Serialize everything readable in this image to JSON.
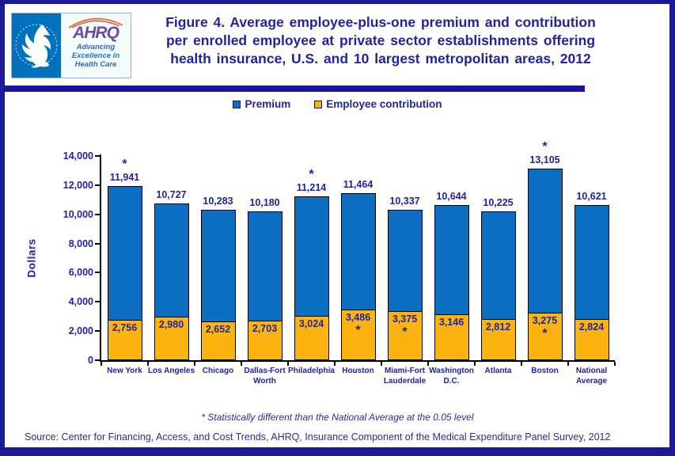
{
  "header": {
    "logo": {
      "hhs_seal": "hhs-eagle-seal",
      "ahrq_acronym": "AHRQ",
      "tagline_lines": [
        "Advancing",
        "Excellence in",
        "Health Care"
      ]
    },
    "title_lines": [
      "Figure 4. Average employee-plus-one premium and contribution",
      "per enrolled employee at private sector establishments offering",
      "health insurance, U.S. and 10 largest metropolitan areas, 2012"
    ]
  },
  "legend": [
    {
      "label": "Premium",
      "color": "#0b6ec0"
    },
    {
      "label": "Employee contribution",
      "color": "#fbb40f"
    }
  ],
  "chart_data": {
    "type": "bar",
    "title": "Figure 4. Average employee-plus-one premium and contribution per enrolled employee at private sector establishments offering health insurance, U.S. and 10 largest metropolitan areas, 2012",
    "xlabel": "",
    "ylabel": "Dollars",
    "ylim": [
      0,
      14000
    ],
    "ytick_step": 2000,
    "grid": false,
    "legend_position": "top-center",
    "categories": [
      "New York",
      "Los Angeles",
      "Chicago",
      "Dallas-Fort Worth",
      "Philadelphia",
      "Houston",
      "Miami-Fort Lauderdale",
      "Washington D.C.",
      "Atlanta",
      "Boston",
      "National Average"
    ],
    "category_label_lines": [
      "New York",
      "Los Angeles",
      "Chicago",
      "Dallas-Fort\nWorth",
      "Philadelphia",
      "Houston",
      "Miami-Fort\nLauderdale",
      "Washington\nD.C.",
      "Atlanta",
      "Boston",
      "National\nAverage"
    ],
    "series": [
      {
        "name": "Premium",
        "color": "#0b6ec0",
        "values": [
          11941,
          10727,
          10283,
          10180,
          11214,
          11464,
          10337,
          10644,
          10225,
          13105,
          10621
        ],
        "statistically_different_flags": [
          true,
          false,
          false,
          false,
          true,
          false,
          false,
          false,
          false,
          true,
          false
        ]
      },
      {
        "name": "Employee contribution",
        "color": "#fbb40f",
        "values": [
          2756,
          2980,
          2652,
          2703,
          3024,
          3486,
          3375,
          3146,
          2812,
          3275,
          2824
        ],
        "statistically_different_flags": [
          false,
          false,
          false,
          false,
          false,
          true,
          true,
          false,
          false,
          true,
          false
        ]
      }
    ],
    "footnote": "* Statistically different than the National Average at the 0.05 level"
  },
  "source_line": "Source: Center for Financing, Access, and Cost Trends, AHRQ, Insurance Component of the Medical Expenditure Panel Survey, 2012",
  "colors": {
    "frame_navy": "#1a1a96",
    "rule_navy": "#1515a0",
    "text_navy": "#2323a0",
    "bar_outline": "#000000",
    "premium_blue": "#0b6ec0",
    "contribution_gold": "#fbb40f",
    "hhs_blue": "#0071bc",
    "ahrq_purple": "#6a4c9f",
    "tagline_blue": "#2970b8"
  }
}
